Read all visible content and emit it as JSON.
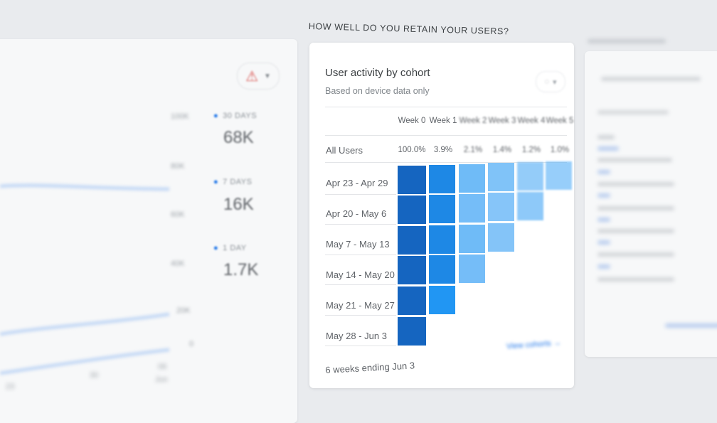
{
  "left_panel": {
    "y_axis": [
      "100K",
      "80K",
      "60K",
      "40K",
      "20K",
      "0"
    ],
    "x_axis": [
      "23",
      "30",
      "06"
    ],
    "x_axis_month": "Jun",
    "legend": [
      {
        "label": "30 DAYS",
        "value": "68K"
      },
      {
        "label": "7 DAYS",
        "value": "16K"
      },
      {
        "label": "1 DAY",
        "value": "1.7K"
      }
    ],
    "alert_icon": "warning-icon",
    "colors": {
      "line": "#c5d9f5",
      "legend_dot": "#1a73e8"
    }
  },
  "section_title": "HOW WELL DO YOU RETAIN YOUR USERS?",
  "cohort_card": {
    "title": "User activity by cohort",
    "subtitle": "Based on device data only",
    "menu_icon": "lightbulb-icon",
    "weeks": [
      "Week 0",
      "Week 1",
      "Week 2",
      "Week 3",
      "Week 4",
      "Week 5"
    ],
    "all_users": {
      "label": "All Users",
      "values": [
        "100.0%",
        "3.9%",
        "2.1%",
        "1.4%",
        "1.2%",
        "1.0%"
      ]
    },
    "rows": [
      {
        "label": "Apr 23 - Apr 29",
        "levels": [
          1.0,
          0.85,
          0.45,
          0.35,
          0.25,
          0.22
        ]
      },
      {
        "label": "Apr 20 - May 6",
        "levels": [
          1.0,
          0.85,
          0.42,
          0.32,
          0.28
        ]
      },
      {
        "label": "May 7 - May 13",
        "levels": [
          1.0,
          0.88,
          0.45,
          0.33
        ]
      },
      {
        "label": "May 14 - May 20",
        "levels": [
          1.0,
          0.85,
          0.42
        ]
      },
      {
        "label": "May 21 - May 27",
        "levels": [
          1.0,
          0.7
        ]
      },
      {
        "label": "May 28 - Jun 3",
        "levels": [
          1.0
        ]
      }
    ],
    "footer": "6 weeks ending Jun 3",
    "view_link": "View cohorts",
    "colors": {
      "dark": "#1565c0",
      "mid": "#1e88e5",
      "light": "#90caf9"
    }
  }
}
